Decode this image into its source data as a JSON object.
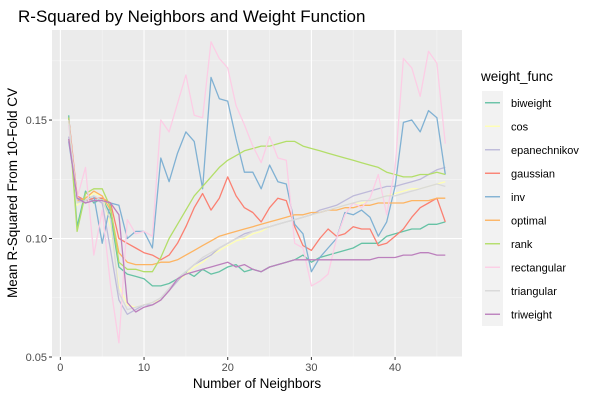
{
  "chart_data": {
    "type": "line",
    "title": "R-Squared by Neighbors and Weight Function",
    "xlabel": "Number of Neighbors",
    "ylabel": "Mean R-Squared From 10-Fold CV",
    "xlim": [
      -1,
      48
    ],
    "ylim": [
      0.05,
      0.188
    ],
    "xticks": [
      0,
      10,
      20,
      30,
      40
    ],
    "yticks": [
      0.05,
      0.1,
      0.15
    ],
    "ytick_labels": [
      "0.05",
      "0.10",
      "0.15"
    ],
    "grid": true,
    "legend_title": "weight_func",
    "legend_position": "right",
    "x": [
      1,
      2,
      3,
      4,
      5,
      6,
      7,
      8,
      9,
      10,
      11,
      12,
      13,
      14,
      15,
      16,
      17,
      18,
      19,
      20,
      21,
      22,
      23,
      24,
      25,
      26,
      27,
      28,
      29,
      30,
      31,
      32,
      33,
      34,
      35,
      36,
      37,
      38,
      39,
      40,
      41,
      42,
      43,
      44,
      45,
      46
    ],
    "series": [
      {
        "name": "biweight",
        "color": "#66C2A5",
        "values": [
          0.152,
          0.105,
          0.12,
          0.115,
          0.117,
          0.11,
          0.088,
          0.085,
          0.084,
          0.083,
          0.08,
          0.08,
          0.081,
          0.083,
          0.086,
          0.084,
          0.087,
          0.085,
          0.086,
          0.088,
          0.089,
          0.086,
          0.087,
          0.086,
          0.088,
          0.089,
          0.09,
          0.091,
          0.093,
          0.09,
          0.092,
          0.093,
          0.094,
          0.095,
          0.096,
          0.098,
          0.098,
          0.098,
          0.101,
          0.102,
          0.103,
          0.104,
          0.104,
          0.106,
          0.106,
          0.107
        ]
      },
      {
        "name": "cos",
        "color": "#FFFFB3",
        "values": [
          0.15,
          0.114,
          0.117,
          0.119,
          0.118,
          0.105,
          0.08,
          0.072,
          0.071,
          0.072,
          0.073,
          0.074,
          0.078,
          0.082,
          0.085,
          0.088,
          0.09,
          0.093,
          0.095,
          0.097,
          0.099,
          0.1,
          0.102,
          0.103,
          0.105,
          0.106,
          0.107,
          0.108,
          0.109,
          0.11,
          0.111,
          0.112,
          0.113,
          0.114,
          0.115,
          0.115,
          0.116,
          0.117,
          0.118,
          0.119,
          0.12,
          0.121,
          0.121,
          0.122,
          0.123,
          0.124
        ]
      },
      {
        "name": "epanechnikov",
        "color": "#BEBADA",
        "values": [
          0.143,
          0.116,
          0.115,
          0.117,
          0.115,
          0.095,
          0.074,
          0.068,
          0.07,
          0.072,
          0.072,
          0.074,
          0.078,
          0.082,
          0.086,
          0.089,
          0.091,
          0.093,
          0.096,
          0.098,
          0.1,
          0.102,
          0.103,
          0.104,
          0.105,
          0.106,
          0.107,
          0.108,
          0.109,
          0.11,
          0.112,
          0.113,
          0.114,
          0.116,
          0.118,
          0.119,
          0.12,
          0.121,
          0.122,
          0.122,
          0.123,
          0.124,
          0.125,
          0.127,
          0.129,
          0.13
        ]
      },
      {
        "name": "gaussian",
        "color": "#FB8072",
        "values": [
          0.151,
          0.118,
          0.116,
          0.117,
          0.117,
          0.115,
          0.1,
          0.098,
          0.096,
          0.094,
          0.093,
          0.091,
          0.093,
          0.098,
          0.105,
          0.113,
          0.119,
          0.112,
          0.117,
          0.126,
          0.118,
          0.113,
          0.111,
          0.107,
          0.113,
          0.117,
          0.116,
          0.105,
          0.097,
          0.095,
          0.1,
          0.104,
          0.101,
          0.102,
          0.105,
          0.104,
          0.104,
          0.097,
          0.098,
          0.101,
          0.104,
          0.109,
          0.113,
          0.115,
          0.117,
          0.107
        ]
      },
      {
        "name": "inv",
        "color": "#80B1D3",
        "values": [
          0.141,
          0.117,
          0.116,
          0.118,
          0.098,
          0.115,
          0.114,
          0.1,
          0.103,
          0.103,
          0.096,
          0.134,
          0.124,
          0.136,
          0.145,
          0.141,
          0.121,
          0.168,
          0.159,
          0.158,
          0.142,
          0.128,
          0.128,
          0.121,
          0.131,
          0.124,
          0.123,
          0.106,
          0.102,
          0.086,
          0.092,
          0.096,
          0.1,
          0.111,
          0.11,
          0.112,
          0.109,
          0.101,
          0.107,
          0.122,
          0.149,
          0.15,
          0.145,
          0.154,
          0.151,
          0.127
        ]
      },
      {
        "name": "optimal",
        "color": "#FDB462",
        "values": [
          0.15,
          0.116,
          0.117,
          0.12,
          0.118,
          0.112,
          0.094,
          0.09,
          0.089,
          0.089,
          0.089,
          0.09,
          0.09,
          0.091,
          0.093,
          0.095,
          0.097,
          0.099,
          0.101,
          0.102,
          0.103,
          0.104,
          0.105,
          0.106,
          0.107,
          0.108,
          0.109,
          0.11,
          0.11,
          0.111,
          0.111,
          0.112,
          0.112,
          0.113,
          0.113,
          0.114,
          0.114,
          0.115,
          0.115,
          0.115,
          0.115,
          0.116,
          0.116,
          0.116,
          0.117,
          0.117
        ]
      },
      {
        "name": "rank",
        "color": "#B3DE69",
        "values": [
          0.151,
          0.103,
          0.119,
          0.121,
          0.121,
          0.113,
          0.09,
          0.087,
          0.087,
          0.086,
          0.086,
          0.092,
          0.1,
          0.106,
          0.112,
          0.118,
          0.122,
          0.126,
          0.13,
          0.133,
          0.135,
          0.137,
          0.138,
          0.139,
          0.139,
          0.14,
          0.141,
          0.141,
          0.139,
          0.138,
          0.137,
          0.136,
          0.135,
          0.134,
          0.133,
          0.132,
          0.131,
          0.13,
          0.128,
          0.127,
          0.126,
          0.126,
          0.127,
          0.127,
          0.128,
          0.127
        ]
      },
      {
        "name": "rectangular",
        "color": "#FCCDE5",
        "values": [
          0.148,
          0.117,
          0.13,
          0.093,
          0.112,
          0.08,
          0.056,
          0.108,
          0.102,
          0.103,
          0.101,
          0.15,
          0.145,
          0.157,
          0.169,
          0.152,
          0.151,
          0.183,
          0.176,
          0.172,
          0.156,
          0.148,
          0.139,
          0.132,
          0.143,
          0.134,
          0.133,
          0.098,
          0.096,
          0.08,
          0.082,
          0.085,
          0.1,
          0.11,
          0.115,
          0.113,
          0.117,
          0.127,
          0.11,
          0.13,
          0.176,
          0.172,
          0.16,
          0.179,
          0.174,
          0.14
        ]
      },
      {
        "name": "triangular",
        "color": "#D9D9D9",
        "values": [
          0.15,
          0.115,
          0.116,
          0.118,
          0.116,
          0.108,
          0.077,
          0.07,
          0.071,
          0.072,
          0.073,
          0.075,
          0.079,
          0.083,
          0.086,
          0.089,
          0.092,
          0.094,
          0.096,
          0.098,
          0.1,
          0.101,
          0.103,
          0.104,
          0.105,
          0.106,
          0.107,
          0.108,
          0.109,
          0.11,
          0.111,
          0.112,
          0.113,
          0.114,
          0.115,
          0.116,
          0.116,
          0.117,
          0.118,
          0.118,
          0.119,
          0.12,
          0.121,
          0.122,
          0.123,
          0.122
        ]
      },
      {
        "name": "triweight",
        "color": "#BC80BD",
        "values": [
          0.142,
          0.117,
          0.115,
          0.116,
          0.116,
          0.115,
          0.11,
          0.073,
          0.069,
          0.071,
          0.072,
          0.074,
          0.078,
          0.083,
          0.085,
          0.086,
          0.087,
          0.088,
          0.089,
          0.09,
          0.088,
          0.089,
          0.087,
          0.086,
          0.088,
          0.089,
          0.09,
          0.091,
          0.091,
          0.091,
          0.091,
          0.091,
          0.091,
          0.091,
          0.091,
          0.091,
          0.091,
          0.092,
          0.092,
          0.092,
          0.093,
          0.093,
          0.094,
          0.094,
          0.093,
          0.093
        ]
      }
    ]
  }
}
